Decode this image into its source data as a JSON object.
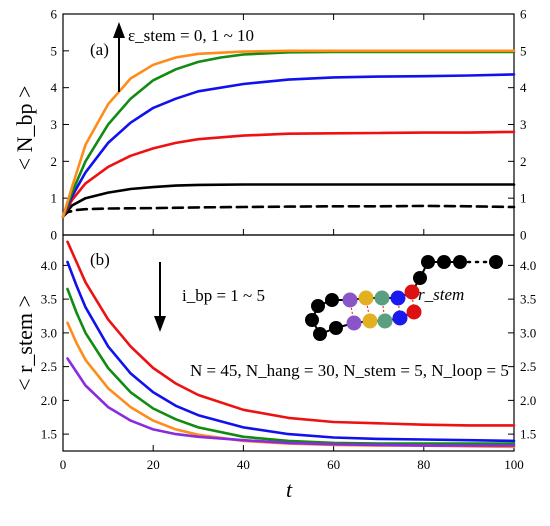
{
  "figure": {
    "xlabel": "t",
    "xlim": [
      0,
      100
    ],
    "xticks": [
      "0",
      "20",
      "40",
      "60",
      "80",
      "100"
    ]
  },
  "chart_data": [
    {
      "type": "line",
      "panel_label": "(a)",
      "ylabel": "< N_bp >",
      "ylim": [
        0,
        6
      ],
      "yticks": [
        "0",
        "1",
        "2",
        "3",
        "4",
        "5",
        "6"
      ],
      "annotation": "ε_stem = 0, 1 ~ 10",
      "series": [
        {
          "color": "#000000",
          "dashed": true,
          "points": [
            [
              0,
              0.5
            ],
            [
              1,
              0.62
            ],
            [
              3,
              0.68
            ],
            [
              5,
              0.7
            ],
            [
              10,
              0.72
            ],
            [
              20,
              0.73
            ],
            [
              30,
              0.75
            ],
            [
              40,
              0.76
            ],
            [
              50,
              0.77
            ],
            [
              60,
              0.78
            ],
            [
              70,
              0.78
            ],
            [
              80,
              0.79
            ],
            [
              90,
              0.78
            ],
            [
              100,
              0.76
            ]
          ]
        },
        {
          "color": "#000000",
          "points": [
            [
              0,
              0.5
            ],
            [
              2,
              0.8
            ],
            [
              5,
              1.0
            ],
            [
              10,
              1.15
            ],
            [
              15,
              1.25
            ],
            [
              20,
              1.3
            ],
            [
              25,
              1.34
            ],
            [
              30,
              1.36
            ],
            [
              40,
              1.37
            ],
            [
              50,
              1.37
            ],
            [
              60,
              1.37
            ],
            [
              70,
              1.37
            ],
            [
              80,
              1.37
            ],
            [
              90,
              1.37
            ],
            [
              100,
              1.37
            ]
          ]
        },
        {
          "color": "#ee1111",
          "points": [
            [
              0,
              0.5
            ],
            [
              2,
              0.95
            ],
            [
              5,
              1.4
            ],
            [
              10,
              1.85
            ],
            [
              15,
              2.15
            ],
            [
              20,
              2.35
            ],
            [
              25,
              2.5
            ],
            [
              30,
              2.6
            ],
            [
              40,
              2.7
            ],
            [
              50,
              2.75
            ],
            [
              60,
              2.76
            ],
            [
              70,
              2.77
            ],
            [
              80,
              2.78
            ],
            [
              90,
              2.78
            ],
            [
              100,
              2.8
            ]
          ]
        },
        {
          "color": "#1111ee",
          "points": [
            [
              0,
              0.5
            ],
            [
              2,
              1.05
            ],
            [
              5,
              1.7
            ],
            [
              10,
              2.5
            ],
            [
              15,
              3.05
            ],
            [
              20,
              3.45
            ],
            [
              25,
              3.7
            ],
            [
              30,
              3.9
            ],
            [
              40,
              4.1
            ],
            [
              50,
              4.22
            ],
            [
              60,
              4.28
            ],
            [
              70,
              4.3
            ],
            [
              80,
              4.31
            ],
            [
              90,
              4.33
            ],
            [
              100,
              4.36
            ]
          ]
        },
        {
          "color": "#108c10",
          "points": [
            [
              0,
              0.5
            ],
            [
              2,
              1.15
            ],
            [
              5,
              2.0
            ],
            [
              10,
              3.0
            ],
            [
              15,
              3.7
            ],
            [
              20,
              4.2
            ],
            [
              25,
              4.5
            ],
            [
              30,
              4.7
            ],
            [
              35,
              4.82
            ],
            [
              40,
              4.9
            ],
            [
              50,
              4.96
            ],
            [
              60,
              4.97
            ],
            [
              70,
              4.97
            ],
            [
              80,
              4.97
            ],
            [
              90,
              4.97
            ],
            [
              100,
              4.97
            ]
          ]
        },
        {
          "color": "#ff8c1a",
          "points": [
            [
              0,
              0.5
            ],
            [
              2,
              1.3
            ],
            [
              5,
              2.45
            ],
            [
              10,
              3.55
            ],
            [
              15,
              4.25
            ],
            [
              20,
              4.62
            ],
            [
              25,
              4.82
            ],
            [
              30,
              4.92
            ],
            [
              40,
              4.98
            ],
            [
              50,
              5.0
            ],
            [
              60,
              5.0
            ],
            [
              70,
              5.0
            ],
            [
              80,
              5.0
            ],
            [
              90,
              5.0
            ],
            [
              100,
              5.0
            ]
          ]
        }
      ]
    },
    {
      "type": "line",
      "panel_label": "(b)",
      "ylabel": "< r_stem >",
      "ylim": [
        1.25,
        4.45
      ],
      "yticks": [
        "1.5",
        "2.0",
        "2.5",
        "3.0",
        "3.5",
        "4.0"
      ],
      "annotation": "i_bp = 1 ~ 5",
      "params": "N = 45, N_hang = 30, N_stem = 5, N_loop = 5",
      "inset_label": "r_stem",
      "series": [
        {
          "color": "#ee1111",
          "points": [
            [
              1,
              4.35
            ],
            [
              3,
              4.05
            ],
            [
              5,
              3.75
            ],
            [
              10,
              3.2
            ],
            [
              15,
              2.8
            ],
            [
              20,
              2.48
            ],
            [
              25,
              2.25
            ],
            [
              30,
              2.08
            ],
            [
              40,
              1.86
            ],
            [
              50,
              1.74
            ],
            [
              60,
              1.68
            ],
            [
              70,
              1.66
            ],
            [
              80,
              1.64
            ],
            [
              90,
              1.63
            ],
            [
              100,
              1.63
            ]
          ]
        },
        {
          "color": "#1111ee",
          "points": [
            [
              1,
              4.05
            ],
            [
              3,
              3.7
            ],
            [
              5,
              3.38
            ],
            [
              10,
              2.8
            ],
            [
              15,
              2.4
            ],
            [
              20,
              2.12
            ],
            [
              25,
              1.92
            ],
            [
              30,
              1.78
            ],
            [
              40,
              1.6
            ],
            [
              50,
              1.5
            ],
            [
              60,
              1.45
            ],
            [
              70,
              1.43
            ],
            [
              80,
              1.42
            ],
            [
              90,
              1.41
            ],
            [
              100,
              1.4
            ]
          ]
        },
        {
          "color": "#108c10",
          "points": [
            [
              1,
              3.65
            ],
            [
              3,
              3.3
            ],
            [
              5,
              3.0
            ],
            [
              10,
              2.48
            ],
            [
              15,
              2.12
            ],
            [
              20,
              1.88
            ],
            [
              25,
              1.72
            ],
            [
              30,
              1.6
            ],
            [
              40,
              1.46
            ],
            [
              50,
              1.4
            ],
            [
              60,
              1.37
            ],
            [
              70,
              1.36
            ],
            [
              80,
              1.36
            ],
            [
              90,
              1.36
            ],
            [
              100,
              1.36
            ]
          ]
        },
        {
          "color": "#ff8c1a",
          "points": [
            [
              1,
              3.15
            ],
            [
              3,
              2.85
            ],
            [
              5,
              2.6
            ],
            [
              10,
              2.18
            ],
            [
              15,
              1.9
            ],
            [
              20,
              1.7
            ],
            [
              25,
              1.57
            ],
            [
              30,
              1.49
            ],
            [
              40,
              1.4
            ],
            [
              50,
              1.36
            ],
            [
              60,
              1.34
            ],
            [
              70,
              1.33
            ],
            [
              80,
              1.33
            ],
            [
              90,
              1.32
            ],
            [
              100,
              1.31
            ]
          ]
        },
        {
          "color": "#8a2be2",
          "points": [
            [
              1,
              2.62
            ],
            [
              3,
              2.42
            ],
            [
              5,
              2.22
            ],
            [
              10,
              1.9
            ],
            [
              15,
              1.7
            ],
            [
              20,
              1.57
            ],
            [
              25,
              1.5
            ],
            [
              30,
              1.46
            ],
            [
              40,
              1.41
            ],
            [
              50,
              1.37
            ],
            [
              60,
              1.35
            ],
            [
              70,
              1.34
            ],
            [
              80,
              1.33
            ],
            [
              90,
              1.33
            ],
            [
              100,
              1.33
            ]
          ]
        }
      ]
    }
  ],
  "inset": {
    "bead_colors": [
      "#000000",
      "#000000",
      "#000000",
      "#000000",
      "#000000",
      "#8a55c8",
      "#e2b020",
      "#5aa080",
      "#1a1aee",
      "#dd1111"
    ]
  }
}
